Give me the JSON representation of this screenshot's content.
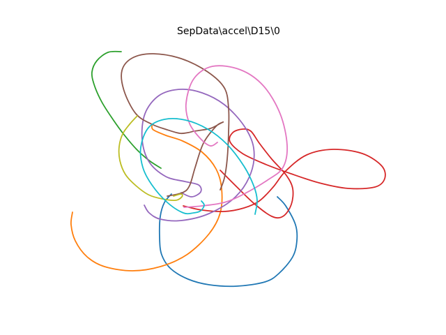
{
  "chart_data": {
    "type": "line",
    "title": "SepData\\accel\\D15\\0",
    "xlabel": "",
    "ylabel": "",
    "axes_visible": false,
    "grid": false,
    "legend": "none",
    "series": [
      {
        "color": "#1f77b4",
        "x": [
          398,
          410,
          424,
          426,
          420,
          400,
          380,
          340,
          300,
          270,
          245,
          232,
          229,
          230,
          236,
          246
        ],
        "y": [
          282,
          295,
          322,
          345,
          368,
          392,
          404,
          410,
          408,
          400,
          385,
          365,
          340,
          310,
          290,
          278
        ]
      },
      {
        "color": "#ff7f0e",
        "x": [
          104,
          102,
          108,
          125,
          150,
          190,
          230,
          268,
          300,
          316,
          318,
          310,
          290,
          262,
          238,
          220,
          218
        ],
        "y": [
          304,
          322,
          345,
          368,
          382,
          388,
          382,
          365,
          335,
          305,
          270,
          242,
          218,
          202,
          194,
          186,
          180
        ]
      },
      {
        "color": "#2ca02c",
        "x": [
          174,
          155,
          139,
          132,
          135,
          146,
          162,
          178,
          196,
          214,
          231
        ],
        "y": [
          74,
          75,
          87,
          103,
          121,
          146,
          171,
          193,
          214,
          230,
          241
        ]
      },
      {
        "color": "#d62728",
        "x": [
          263,
          290,
          322,
          350,
          372,
          392,
          410,
          440,
          478,
          520,
          548,
          552,
          538,
          500,
          458,
          415,
          380,
          348,
          330,
          334,
          348,
          360,
          372,
          390,
          410,
          420,
          418,
          406,
          390,
          365,
          340,
          316
        ],
        "y": [
          295,
          301,
          303,
          298,
          288,
          268,
          245,
          222,
          214,
          220,
          238,
          256,
          268,
          270,
          262,
          248,
          235,
          220,
          203,
          190,
          185,
          188,
          205,
          228,
          250,
          270,
          293,
          310,
          310,
          292,
          268,
          244
        ]
      },
      {
        "color": "#9467bd",
        "x": [
          207,
          214,
          230,
          260,
          300,
          338,
          360,
          364,
          350,
          322,
          290,
          258,
          228,
          208,
          204,
          214,
          238,
          265,
          285,
          288,
          275,
          260
        ],
        "y": [
          294,
          305,
          314,
          316,
          306,
          282,
          248,
          212,
          180,
          150,
          133,
          128,
          137,
          163,
          200,
          232,
          253,
          260,
          265,
          275,
          282,
          276
        ]
      },
      {
        "color": "#8c564b",
        "x": [
          240,
          262,
          272,
          280,
          292,
          310,
          320,
          316,
          302,
          285,
          278,
          270,
          258,
          240,
          218,
          195,
          178,
          175,
          190,
          220,
          260,
          298,
          322,
          328,
          328,
          326,
          322,
          316
        ],
        "y": [
          281,
          276,
          266,
          240,
          205,
          181,
          175,
          177,
          184,
          187,
          188,
          190,
          191,
          186,
          178,
          163,
          130,
          101,
          83,
          77,
          84,
          103,
          126,
          155,
          190,
          228,
          255,
          272
        ]
      },
      {
        "color": "#e377c2",
        "x": [
          264,
          290,
          322,
          350,
          384,
          406,
          412,
          402,
          378,
          345,
          305,
          278,
          267,
          272,
          288,
          302,
          312
        ],
        "y": [
          297,
          295,
          290,
          278,
          258,
          240,
          208,
          163,
          123,
          100,
          95,
          113,
          148,
          177,
          199,
          209,
          204
        ]
      },
      {
        "color": "#bcbd22",
        "x": [
          197,
          186,
          176,
          171,
          172,
          180,
          195,
          213,
          233,
          252,
          261,
          260,
          249
        ],
        "y": [
          166,
          178,
          192,
          210,
          230,
          250,
          266,
          279,
          285,
          287,
          282,
          278,
          281
        ]
      },
      {
        "color": "#17becf",
        "x": [
          289,
          293,
          288,
          278,
          263,
          240,
          218,
          205,
          202,
          213,
          236,
          266,
          298,
          326,
          350,
          364,
          369,
          366
        ],
        "y": [
          288,
          294,
          302,
          305,
          305,
          290,
          265,
          240,
          211,
          183,
          171,
          172,
          185,
          207,
          238,
          266,
          287,
          307
        ]
      }
    ]
  }
}
